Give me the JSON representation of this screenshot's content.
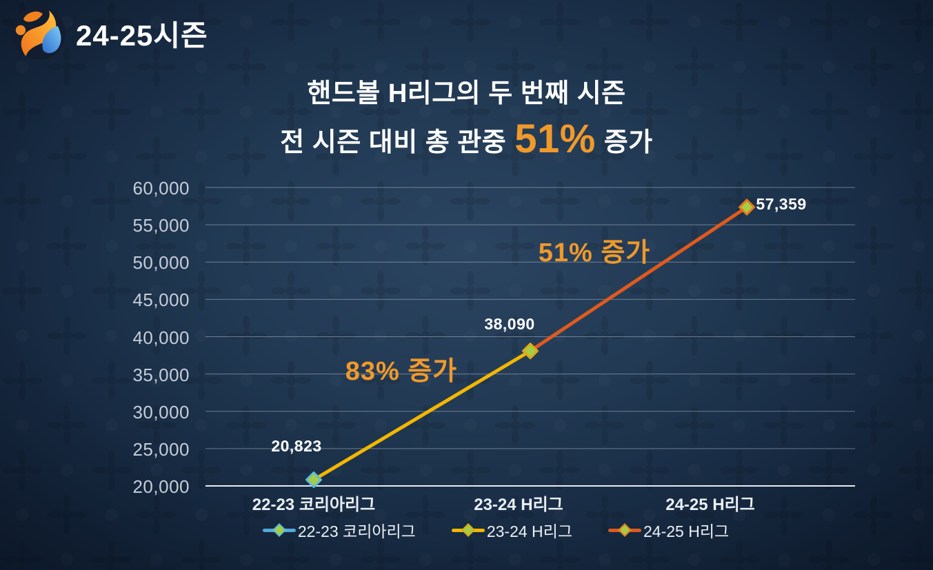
{
  "header": {
    "season_badge": "24-25시즌"
  },
  "title": {
    "line1": "핸드볼 H리그의 두 번째 시즌",
    "line2_prefix": "전 시즌 대비 총 관중",
    "line2_highlight": "51%",
    "line2_suffix": "증가"
  },
  "colors": {
    "accent_orange": "#F0992B",
    "line_gold": "#F3B700",
    "line_orange": "#E05A1D",
    "legend_blue": "#55A8DC",
    "marker_fill": "#A8CC44",
    "background_navy": "#16283C",
    "grid_gray": "rgba(205,214,226,0.45)",
    "axis_white": "#E6EBF1"
  },
  "chart_data": {
    "type": "line",
    "categories": [
      "22-23 코리아리그",
      "23-24 H리그",
      "24-25 H리그"
    ],
    "values": [
      20823,
      38090,
      57359
    ],
    "value_labels": [
      "20,823",
      "38,090",
      "57,359"
    ],
    "ylim": [
      20000,
      60000
    ],
    "ytick_step": 5000,
    "ytick_labels": [
      "20,000",
      "25,000",
      "30,000",
      "35,000",
      "40,000",
      "45,000",
      "50,000",
      "55,000",
      "60,000"
    ],
    "grid": true,
    "legend_position": "bottom",
    "segments": [
      {
        "from": 0,
        "to": 1,
        "color": "#F3B700",
        "annotation": "83% 증가"
      },
      {
        "from": 1,
        "to": 2,
        "color": "#E05A1D",
        "annotation": "51% 증가"
      }
    ],
    "marker": {
      "shape": "diamond",
      "fill": "#A8CC44"
    },
    "marker_borders": [
      "#5EBCD6",
      "#DCA818",
      "#E27B1F"
    ],
    "legend": [
      {
        "label": "22-23 코리아리그",
        "line_color": "#55A8DC",
        "marker_border": "#5EBCD6"
      },
      {
        "label": "23-24 H리그",
        "line_color": "#F3B700",
        "marker_border": "#DCA818"
      },
      {
        "label": "24-25 H리그",
        "line_color": "#E05A1D",
        "marker_border": "#E27B1F"
      }
    ]
  }
}
